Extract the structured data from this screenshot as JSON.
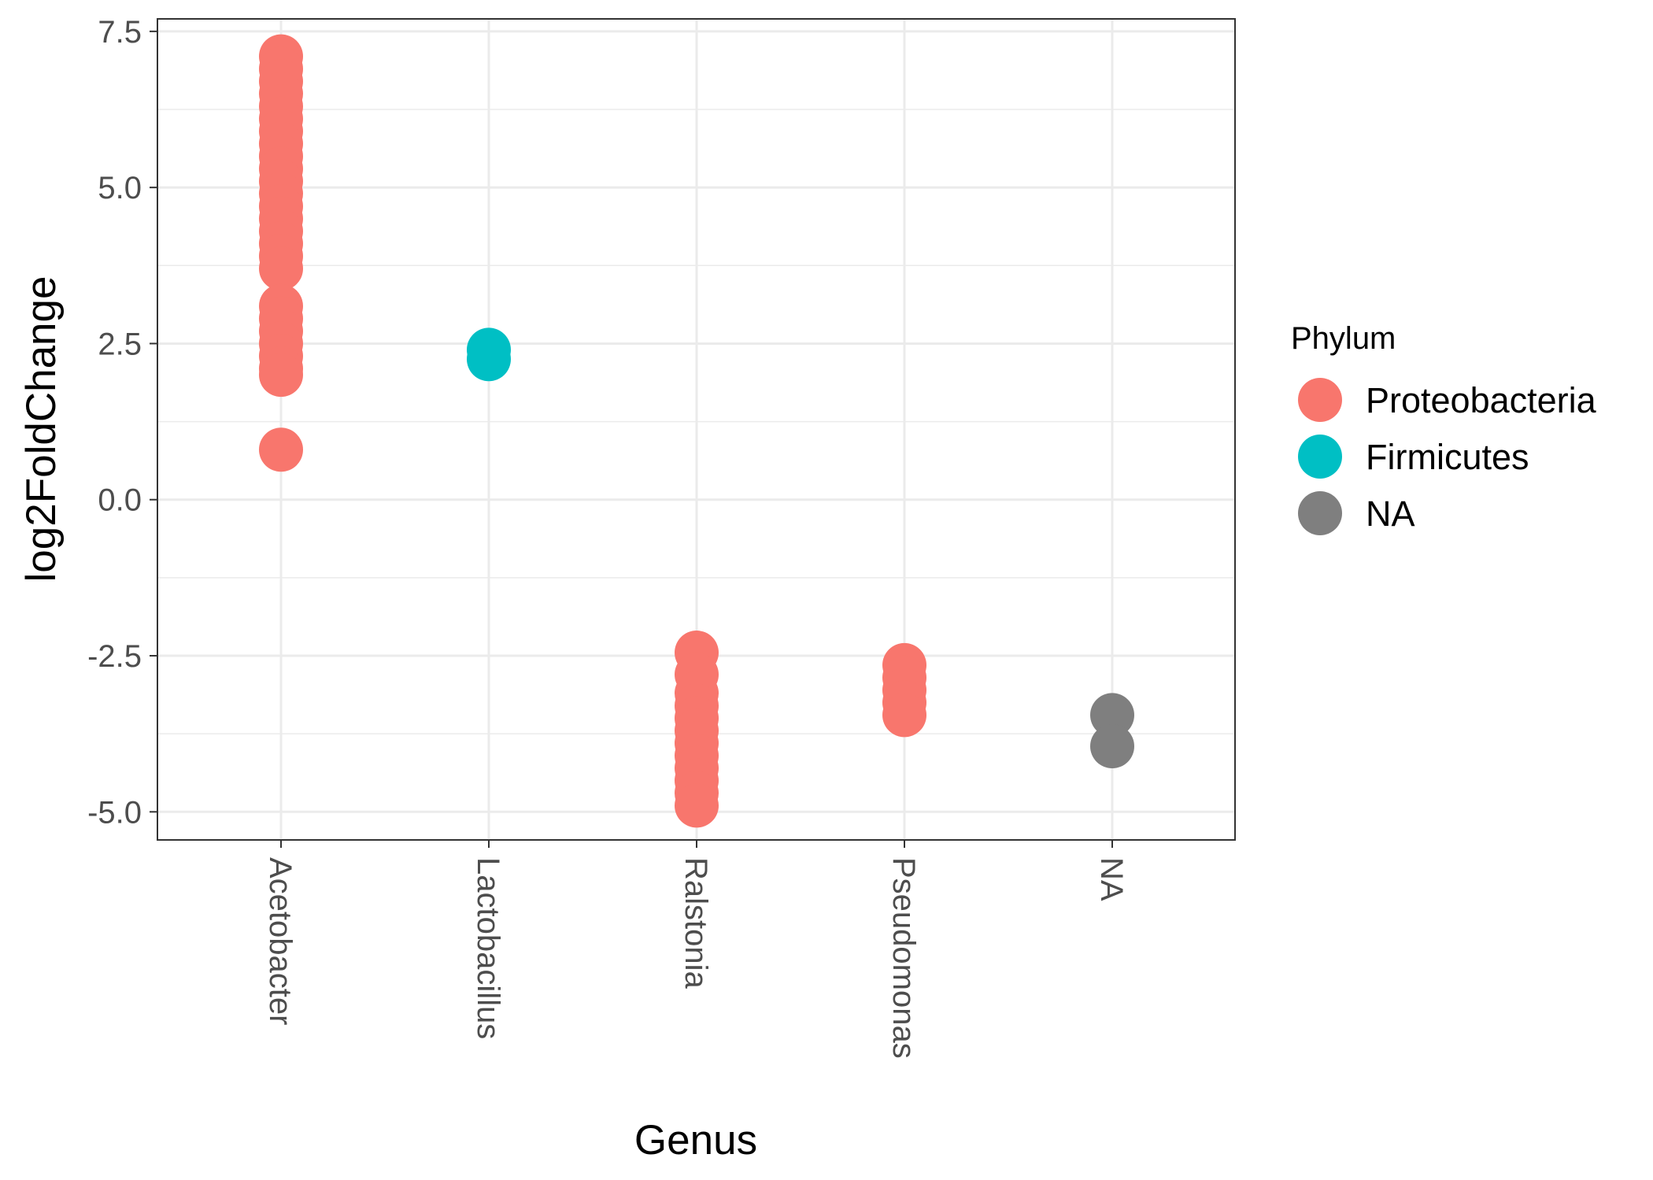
{
  "chart_data": {
    "type": "scatter",
    "title": "",
    "xlabel": "Genus",
    "ylabel": "log2FoldChange",
    "categories": [
      "Acetobacter",
      "Lactobacillus",
      "Ralstonia",
      "Pseudomonas",
      "NA"
    ],
    "y_ticks": [
      -5.0,
      -2.5,
      0.0,
      2.5,
      5.0,
      7.5
    ],
    "y_tick_labels": [
      "-5.0",
      "-2.5",
      "0.0",
      "2.5",
      "5.0",
      "7.5"
    ],
    "ylim": [
      -5.45,
      7.7
    ],
    "grid": true,
    "legend": {
      "title": "Phylum",
      "position": "right",
      "entries": [
        {
          "label": "Proteobacteria",
          "color": "#F8766D"
        },
        {
          "label": "Firmicutes",
          "color": "#00BFC4"
        },
        {
          "label": "NA",
          "color": "#7F7F7F"
        }
      ]
    },
    "series": [
      {
        "phylum": "Proteobacteria",
        "color": "#F8766D",
        "points": [
          {
            "x": "Acetobacter",
            "y": 7.1
          },
          {
            "x": "Acetobacter",
            "y": 6.9
          },
          {
            "x": "Acetobacter",
            "y": 6.7
          },
          {
            "x": "Acetobacter",
            "y": 6.5
          },
          {
            "x": "Acetobacter",
            "y": 6.3
          },
          {
            "x": "Acetobacter",
            "y": 6.1
          },
          {
            "x": "Acetobacter",
            "y": 5.9
          },
          {
            "x": "Acetobacter",
            "y": 5.7
          },
          {
            "x": "Acetobacter",
            "y": 5.5
          },
          {
            "x": "Acetobacter",
            "y": 5.3
          },
          {
            "x": "Acetobacter",
            "y": 5.1
          },
          {
            "x": "Acetobacter",
            "y": 4.9
          },
          {
            "x": "Acetobacter",
            "y": 4.7
          },
          {
            "x": "Acetobacter",
            "y": 4.5
          },
          {
            "x": "Acetobacter",
            "y": 4.3
          },
          {
            "x": "Acetobacter",
            "y": 4.1
          },
          {
            "x": "Acetobacter",
            "y": 3.9
          },
          {
            "x": "Acetobacter",
            "y": 3.7
          },
          {
            "x": "Acetobacter",
            "y": 3.1
          },
          {
            "x": "Acetobacter",
            "y": 2.9
          },
          {
            "x": "Acetobacter",
            "y": 2.7
          },
          {
            "x": "Acetobacter",
            "y": 2.5
          },
          {
            "x": "Acetobacter",
            "y": 2.3
          },
          {
            "x": "Acetobacter",
            "y": 2.1
          },
          {
            "x": "Acetobacter",
            "y": 2.0
          },
          {
            "x": "Acetobacter",
            "y": 0.8
          },
          {
            "x": "Ralstonia",
            "y": -2.45
          },
          {
            "x": "Ralstonia",
            "y": -2.8
          },
          {
            "x": "Ralstonia",
            "y": -3.1
          },
          {
            "x": "Ralstonia",
            "y": -3.3
          },
          {
            "x": "Ralstonia",
            "y": -3.5
          },
          {
            "x": "Ralstonia",
            "y": -3.7
          },
          {
            "x": "Ralstonia",
            "y": -3.9
          },
          {
            "x": "Ralstonia",
            "y": -4.1
          },
          {
            "x": "Ralstonia",
            "y": -4.3
          },
          {
            "x": "Ralstonia",
            "y": -4.5
          },
          {
            "x": "Ralstonia",
            "y": -4.7
          },
          {
            "x": "Ralstonia",
            "y": -4.9
          },
          {
            "x": "Pseudomonas",
            "y": -2.65
          },
          {
            "x": "Pseudomonas",
            "y": -2.85
          },
          {
            "x": "Pseudomonas",
            "y": -3.05
          },
          {
            "x": "Pseudomonas",
            "y": -3.25
          },
          {
            "x": "Pseudomonas",
            "y": -3.45
          }
        ]
      },
      {
        "phylum": "Firmicutes",
        "color": "#00BFC4",
        "points": [
          {
            "x": "Lactobacillus",
            "y": 2.4
          },
          {
            "x": "Lactobacillus",
            "y": 2.25
          }
        ]
      },
      {
        "phylum": "NA",
        "color": "#7F7F7F",
        "points": [
          {
            "x": "NA",
            "y": -3.45
          },
          {
            "x": "NA",
            "y": -3.95
          }
        ]
      }
    ]
  }
}
